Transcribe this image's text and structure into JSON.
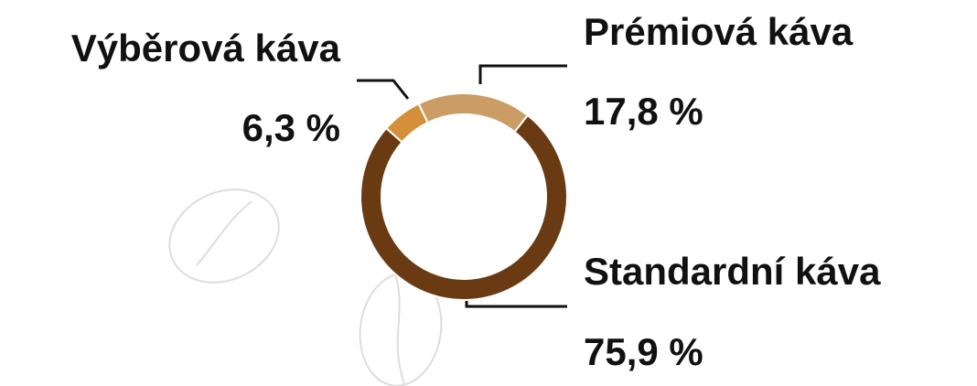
{
  "chart_data": {
    "type": "pie",
    "donut": true,
    "categories": [
      "Výběrová káva",
      "Prémiová káva",
      "Standardní káva"
    ],
    "values": [
      6.3,
      17.8,
      75.9
    ],
    "value_labels": [
      "6,3 %",
      "17,8 %",
      "75,9 %"
    ],
    "colors": [
      "#d48f38",
      "#cc9c66",
      "#6a3b13"
    ]
  }
}
